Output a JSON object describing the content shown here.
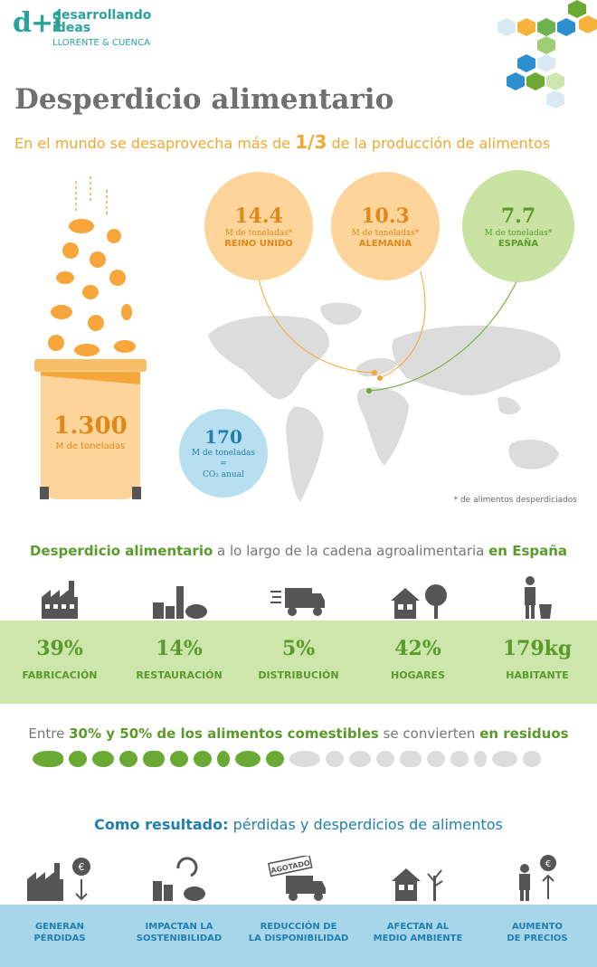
{
  "logo": {
    "mark": "d+i",
    "line1": "desarrollando",
    "line2": "ideas",
    "sub": "LLORENTE & CUENCA"
  },
  "title": "Desperdicio alimentario",
  "subtitle": {
    "pre": "En el mundo se desaprovecha más de ",
    "highlight": "1/3",
    "post": " de la producción de alimentos"
  },
  "bubbles": [
    {
      "value": "14.4",
      "unit": "M de toneladas*",
      "country": "REINO UNIDO"
    },
    {
      "value": "10.3",
      "unit": "M de toneladas*",
      "country": "ALEMANIA"
    },
    {
      "value": "7.7",
      "unit": "M de toneladas*",
      "country": "ESPAÑA"
    }
  ],
  "co2": {
    "value": "170",
    "line1": "M de toneladas",
    "line2": "=",
    "line3": "CO₂ anual"
  },
  "bin": {
    "value": "1.300",
    "unit": "M de toneladas"
  },
  "footnote": "* de alimentos desperdiciados",
  "chain": {
    "t1": "Desperdicio alimentario",
    "t2": " a lo largo de la cadena agroalimentaria ",
    "t3": "en España"
  },
  "stats": [
    {
      "value": "39%",
      "label": "FABRICACIÓN",
      "icon": "factory-icon"
    },
    {
      "value": "14%",
      "label": "RESTAURACIÓN",
      "icon": "food-service-icon"
    },
    {
      "value": "5%",
      "label": "DISTRIBUCIÓN",
      "icon": "truck-icon"
    },
    {
      "value": "42%",
      "label": "HOGARES",
      "icon": "house-icon"
    },
    {
      "value": "179kg",
      "label": "HABITANTE",
      "icon": "person-bin-icon"
    }
  ],
  "edible": {
    "pre": "Entre ",
    "b1": "30% y 50% de los alimentos comestibles",
    "mid": " se convierten ",
    "b2": "en residuos"
  },
  "result": {
    "b": "Como resultado:",
    "rest": " pérdidas y desperdicios de alimentos"
  },
  "effects": [
    {
      "l1": "GENERAN",
      "l2": "PÉRDIDAS"
    },
    {
      "l1": "IMPACTAN LA",
      "l2": "SOSTENIBILIDAD"
    },
    {
      "l1": "REDUCCIÓN DE",
      "l2": "LA DISPONIBILIDAD"
    },
    {
      "l1": "AFECTAN AL",
      "l2": "MEDIO AMBIENTE"
    },
    {
      "l1": "AUMENTO",
      "l2": "DE PRECIOS"
    }
  ],
  "agotado": "AGOTADO",
  "euro": "€",
  "colors": {
    "green": "#5a9a2a",
    "orange": "#f0a830",
    "blue": "#1f7fb0",
    "band_green": "#cde6ab",
    "band_blue": "#a7d6ea"
  }
}
